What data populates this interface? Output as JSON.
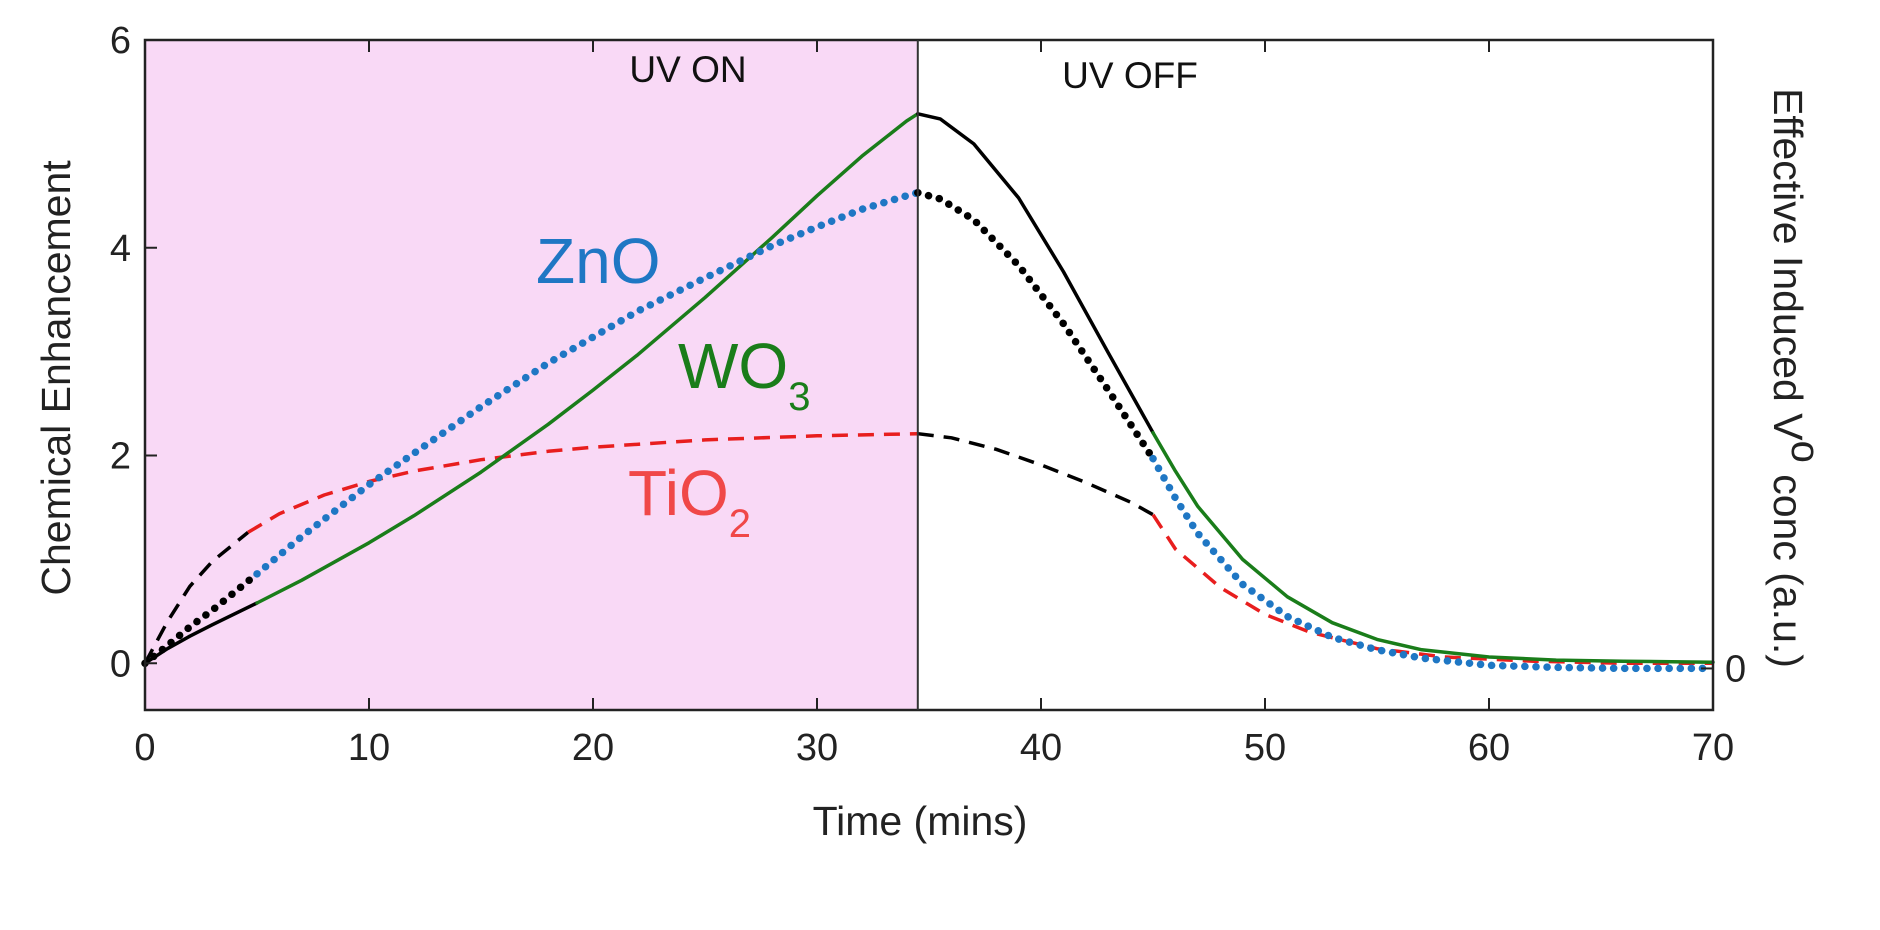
{
  "chart_data": {
    "type": "line",
    "title": "",
    "xlabel": "Time (mins)",
    "ylabel": "Chemical Enhancement",
    "y2label": "Effective Induced V",
    "y2label_sub": "o",
    "y2label_end": " conc (a.u.)",
    "xlim": [
      0,
      70
    ],
    "ylim": [
      -0.45,
      6
    ],
    "xticks": [
      0,
      10,
      20,
      30,
      40,
      50,
      60,
      70
    ],
    "yticks": [
      0,
      2,
      4,
      6
    ],
    "y2ticks": [
      "0"
    ],
    "grid": false,
    "legend": "none",
    "regions": [
      {
        "label": "UV ON",
        "x_start": 0,
        "x_end": 34.5,
        "color": "#f9d9f6"
      },
      {
        "label": "UV OFF",
        "x_start": 34.5,
        "x_end": 70,
        "color": "#ffffff"
      }
    ],
    "series": [
      {
        "name": "WO",
        "name_sub": "3",
        "color": "#1a7d1a",
        "style": "solid",
        "early_color": "#000000",
        "early_until": 5,
        "late_color": "#000000",
        "late_from": 34.5,
        "late_until": 45,
        "x": [
          0,
          1,
          2,
          3,
          5,
          7,
          10,
          12,
          15,
          18,
          20,
          22,
          25,
          28,
          30,
          32,
          34,
          34.5,
          35.5,
          37,
          39,
          41,
          43,
          45,
          46,
          47,
          49,
          51,
          53,
          55,
          57,
          60,
          63,
          66,
          70
        ],
        "y": [
          0.0,
          0.14,
          0.26,
          0.37,
          0.58,
          0.8,
          1.16,
          1.42,
          1.84,
          2.3,
          2.63,
          2.97,
          3.52,
          4.1,
          4.5,
          4.88,
          5.22,
          5.29,
          5.24,
          5.0,
          4.48,
          3.77,
          2.99,
          2.22,
          1.85,
          1.51,
          1.0,
          0.64,
          0.39,
          0.23,
          0.13,
          0.06,
          0.03,
          0.02,
          0.01
        ]
      },
      {
        "name": "ZnO",
        "color": "#1f77c4",
        "style": "dotted",
        "early_color": "#000000",
        "early_until": 5,
        "late_color": "#000000",
        "late_from": 34.5,
        "late_until": 45,
        "x": [
          0,
          1,
          2,
          3,
          5,
          7,
          10,
          12,
          15,
          18,
          20,
          22,
          25,
          28,
          30,
          32,
          34,
          34.5,
          35.5,
          37,
          39,
          41,
          43,
          45,
          46,
          47,
          49,
          51,
          53,
          55,
          57,
          60,
          63,
          66,
          70
        ],
        "y": [
          0.0,
          0.17,
          0.35,
          0.51,
          0.86,
          1.22,
          1.72,
          2.02,
          2.47,
          2.89,
          3.14,
          3.39,
          3.71,
          4.02,
          4.2,
          4.37,
          4.5,
          4.53,
          4.47,
          4.27,
          3.83,
          3.27,
          2.63,
          1.97,
          1.59,
          1.25,
          0.76,
          0.45,
          0.25,
          0.13,
          0.05,
          -0.02,
          -0.04,
          -0.05,
          -0.05
        ]
      },
      {
        "name": "TiO",
        "name_sub": "2",
        "color": "#e81e1e",
        "style": "dashed",
        "early_color": "#000000",
        "early_until": 4.6,
        "late_color": "#000000",
        "late_from": 34.5,
        "late_until": 45,
        "x": [
          0,
          1,
          2,
          3,
          4.6,
          6,
          8,
          10,
          12,
          15,
          18,
          20,
          25,
          30,
          34.5,
          36,
          38,
          40,
          42,
          44,
          45,
          46,
          48,
          50,
          52,
          55,
          58,
          62,
          66,
          70
        ],
        "y": [
          0.0,
          0.4,
          0.74,
          0.98,
          1.26,
          1.44,
          1.62,
          1.75,
          1.85,
          1.96,
          2.04,
          2.08,
          2.15,
          2.19,
          2.21,
          2.17,
          2.06,
          1.91,
          1.74,
          1.55,
          1.43,
          1.1,
          0.73,
          0.47,
          0.3,
          0.14,
          0.06,
          0.02,
          0.0,
          0.0
        ]
      }
    ]
  }
}
